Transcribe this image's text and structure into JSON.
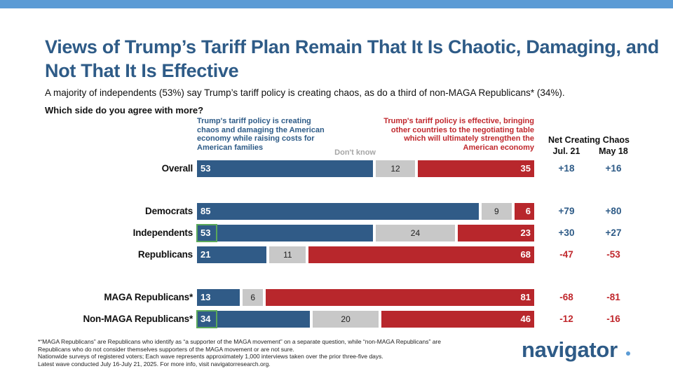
{
  "title": "Views of Trump’s Tariff Plan Remain That It Is Chaotic, Damaging, and Not That It Is Effective",
  "subtitle": "A majority of independents (53%) say Trump’s tariff policy is creating chaos, as do a third of non-MAGA Republicans* (34%).",
  "question": "Which side do you agree with more?",
  "legend": {
    "left": "Trump's tariff policy is creating chaos and damaging the American economy while raising costs for American families",
    "middle": "Don't know",
    "right": "Trump's tariff policy is effective, bringing other countries to the negotiating table which will ultimately strengthen the American economy"
  },
  "net": {
    "title": "Net Creating Chaos",
    "col1": "Jul. 21",
    "col2": "May 18"
  },
  "colors": {
    "chaos": "#305b87",
    "dont_know": "#c8c8c8",
    "effective": "#b8272c",
    "highlight": "#5aa85a"
  },
  "chart_data": {
    "type": "bar",
    "orientation": "horizontal-stacked-100",
    "categories": [
      "Overall",
      "Democrats",
      "Independents",
      "Republicans",
      "MAGA Republicans*",
      "Non-MAGA Republicans*"
    ],
    "series": [
      {
        "name": "Trump's tariff policy is creating chaos and damaging the American economy while raising costs for American families",
        "values": [
          53,
          85,
          53,
          21,
          13,
          34
        ]
      },
      {
        "name": "Don't know",
        "values": [
          12,
          9,
          24,
          11,
          6,
          20
        ]
      },
      {
        "name": "Trump's tariff policy is effective, bringing other countries to the negotiating table which will ultimately strengthen the American economy",
        "values": [
          35,
          6,
          23,
          68,
          81,
          46
        ]
      }
    ],
    "net_jul21": [
      "+18",
      "+79",
      "+30",
      "-47",
      "-68",
      "-12"
    ],
    "net_may18": [
      "+16",
      "+80",
      "+27",
      "-53",
      "-81",
      "-16"
    ],
    "highlighted_chaos": [
      false,
      false,
      true,
      false,
      false,
      true
    ]
  },
  "footnote": [
    "*“MAGA Republicans” are Republicans who identify as “a supporter of the MAGA movement” on a separate question, while “non-MAGA Republicans” are",
    "Republicans who do not consider themselves supporters of the MAGA movement or are not sure.",
    "Nationwide surveys of registered voters; Each wave represents approximately 1,000 interviews taken over the prior three-five days.",
    "Latest wave conducted July 16-July 21, 2025. For more info, visit navigatorresearch.org."
  ],
  "logo": "navigator"
}
